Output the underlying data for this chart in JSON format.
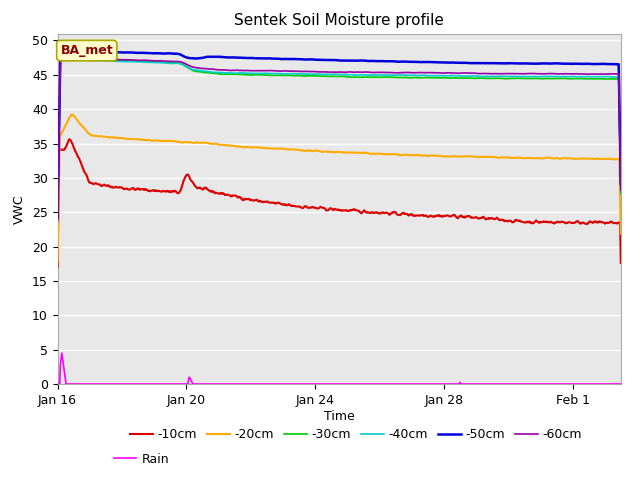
{
  "title": "Sentek Soil Moisture profile",
  "xlabel": "Time",
  "ylabel": "VWC",
  "ylim": [
    0,
    51
  ],
  "yticks": [
    0,
    5,
    10,
    15,
    20,
    25,
    30,
    35,
    40,
    45,
    50
  ],
  "background_color": "#e8e8e8",
  "legend_label": "BA_met",
  "x_tick_labels": [
    "Jan 16",
    "Jan 20",
    "Jan 24",
    "Jan 28",
    "Feb 1"
  ],
  "x_tick_positions": [
    0,
    4,
    8,
    12,
    16
  ],
  "xlim": [
    0,
    17.5
  ],
  "colors": {
    "-10cm": "#dd0000",
    "-20cm": "#ffaa00",
    "-30cm": "#00cc00",
    "-40cm": "#00cccc",
    "-50cm": "#0000dd",
    "-60cm": "#9900aa",
    "Rain": "#ff00ff"
  },
  "line_widths": {
    "-10cm": 1.5,
    "-20cm": 1.5,
    "-30cm": 1.2,
    "-40cm": 1.2,
    "-50cm": 1.8,
    "-60cm": 1.2,
    "Rain": 1.2
  }
}
